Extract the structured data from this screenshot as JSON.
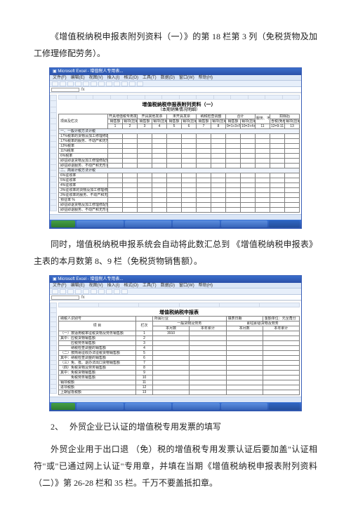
{
  "para1": "《增值税纳税申报表附列资料（一）》的第 18 栏第 3 列（免税货物及加工修理修配劳务）。",
  "para2": "同时，增值税纳税申报系统会自动将此数汇总到 《增值税纳税申报表》主表的本月数第 8、9 栏（免税货物销售额）。",
  "para3_num": "2、",
  "para3": "外贸企业已认证的增值税专用发票的填写",
  "para4": "外贸企业用于出口退 （免）税的增值税专用发票认证后要加盖\"认证相符\"或\"已通过网上认证\"专用章，并填在当期《增值税纳税申报表附列资料（二）》第 26-28 栏和 35 栏。千万不要盖抵扣章。",
  "excel": {
    "app_title": "Microsoft Excel - 增值税人专用表...",
    "menus": [
      "文件(F)",
      "编辑(E)",
      "视图(V)",
      "插入(I)",
      "格式(O)",
      "工具(T)",
      "数据(D)",
      "窗口(W)",
      "帮助(H)"
    ],
    "fx": "fx"
  },
  "form1": {
    "title": "增值税纳税申报表附列资料（一）",
    "subtitle": "（本期销售情况明细）",
    "left_header": "项目及栏次",
    "cg_headers": [
      "开具增值税专用发票",
      "开具其他发票",
      "未开具发票",
      "纳税检查调整",
      "合计",
      "服务、不动产和无形资产扣除项目本期扣除金额",
      "扣除后"
    ],
    "sub_headers": [
      "销售额",
      "销项(应纳)税额",
      "销售额",
      "销项(应纳)税额",
      "销售额",
      "销项(应纳)税额",
      "销售额",
      "销项(应纳)税额",
      "销售额",
      "销项(应纳)税额",
      "",
      "含税(免税)销售额",
      "销项(应纳)税额"
    ],
    "cols_nums": [
      "1",
      "2",
      "3",
      "4",
      "5",
      "6",
      "7",
      "8",
      "9=1+3+5+7",
      "10=2+4+6+8",
      "11",
      "12=9-11",
      "13"
    ],
    "sections": [
      {
        "hdr": "一、一般计税方法计税",
        "rows": [
          "17%税率的货物及加工修理修配劳务",
          "17%税率的服务、不动产和无形资产",
          "13%税率",
          "11%税率",
          "6%税率",
          "即征即退货物及加工修理修配劳务",
          "即征即退服务、不动产和无形资产"
        ]
      },
      {
        "hdr": "二、简易计税方法计税",
        "rows": [
          "6%征收率",
          "5%征收率",
          "4%征收率",
          "3%征收率的货物及加工修理修配劳务",
          "3%征收率的服务、不动产和无形资产",
          "预征率  %",
          "即征即退货物及加工修理修配劳务",
          "即征即退服务、不动产和无形资产"
        ]
      }
    ]
  },
  "form2": {
    "title": "增值税纳税申报表",
    "meta_row": [
      "纳税人识别号",
      "",
      "所属行业",
      "",
      "",
      "填表日期",
      "",
      "金额单位：元至角分"
    ],
    "colhdrs": [
      "项  目",
      "栏次",
      "一般货物及劳务",
      "即征即退货物及劳务"
    ],
    "subhdrs": [
      "",
      "",
      "本月数",
      "本年累计",
      "本月数",
      "本年累计"
    ],
    "rows": [
      [
        "（一）按适用税率征税货物及劳务销售额",
        "1",
        "3910",
        "",
        "",
        ""
      ],
      [
        "其中：应税货物销售额",
        "2",
        "",
        "",
        "",
        ""
      ],
      [
        "　　　应税劳务销售额",
        "3",
        "",
        "",
        "",
        ""
      ],
      [
        "　　　纳税检查调整的销售额",
        "4",
        "",
        "",
        "",
        ""
      ],
      [
        "（二）按简易征收办法征税货物销售额",
        "5",
        "",
        "",
        "",
        ""
      ],
      [
        "其中：纳税检查调整的销售额",
        "6",
        "",
        "",
        "",
        ""
      ],
      [
        "（三）免、抵、退办法出口货物销售额",
        "7",
        "",
        "",
        "",
        ""
      ],
      [
        "（四）免税货物及劳务销售额",
        "8",
        "",
        "",
        "",
        ""
      ],
      [
        "其中：免税货物销售额",
        "9",
        "",
        "",
        "",
        ""
      ],
      [
        "　　　免税劳务销售额",
        "10",
        "",
        "",
        "",
        ""
      ],
      [
        "销项税额",
        "11",
        "",
        "",
        "",
        ""
      ],
      [
        "进项税额",
        "12",
        "",
        "",
        "",
        ""
      ],
      [
        "上期留抵税额",
        "13",
        "",
        "",
        "",
        ""
      ]
    ]
  }
}
